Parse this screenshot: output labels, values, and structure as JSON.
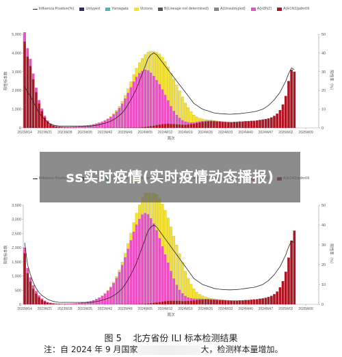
{
  "legend": [
    {
      "label": "Influenza Positive(%)",
      "color": "#222222",
      "kind": "line"
    },
    {
      "label": "Untyped",
      "color": "#2d2d5a",
      "kind": "box"
    },
    {
      "label": "Yamagata",
      "color": "#4fb3b0",
      "kind": "box"
    },
    {
      "label": "Victoria",
      "color": "#f4e233",
      "kind": "box"
    },
    {
      "label": "B(Lineage not determined)",
      "color": "#555555",
      "kind": "box"
    },
    {
      "label": "A(Unsubtyped)",
      "color": "#888888",
      "kind": "box"
    },
    {
      "label": "A(H3N2)",
      "color": "#ee4fc4",
      "kind": "box"
    },
    {
      "label": "A(H1N1)pdm09",
      "color": "#b01322",
      "kind": "box"
    }
  ],
  "overlay": {
    "title": "ss实时疫情(实时疫情动态播报)"
  },
  "caption": {
    "figure": "图 5",
    "title": "北方省份 ILI 标本检测结果"
  },
  "note": {
    "prefix": "注：自 2024 年 9 月国家",
    "suffix": "大，检测样本量增加。"
  },
  "chart_data": [
    {
      "type": "bar",
      "stacked": true,
      "x_tick_labels": [
        "2023W14",
        "2023W21",
        "2023W28",
        "2023W35",
        "2023W42",
        "2023W49",
        "2024W05",
        "2024W12",
        "2024W19",
        "2024W26",
        "2024W33",
        "2024W40",
        "2024W47",
        "2025W02",
        "2025W09"
      ],
      "x_tick_every": 7,
      "xlabel": "周次",
      "ylabel": "阳性标本数",
      "y2label": "阳性率（%）",
      "ylim": [
        0,
        5000
      ],
      "yticks": [
        0,
        1000,
        2000,
        3000,
        4000,
        5000
      ],
      "y2lim": [
        0,
        50
      ],
      "y2ticks": [
        0,
        10,
        20,
        30,
        40,
        50
      ],
      "n_weeks": 103,
      "h1n1": [
        4600,
        3800,
        3300,
        2600,
        1900,
        1300,
        900,
        550,
        330,
        190,
        110,
        70,
        45,
        30,
        22,
        18,
        15,
        12,
        10,
        10,
        10,
        10,
        10,
        10,
        10,
        10,
        10,
        10,
        10,
        10,
        10,
        10,
        10,
        12,
        12,
        14,
        15,
        16,
        18,
        20,
        25,
        35,
        50,
        70,
        95,
        120,
        150,
        180,
        200,
        210,
        220,
        210,
        200,
        190,
        180,
        170,
        160,
        180,
        200,
        220,
        260,
        290,
        320,
        340,
        350,
        360,
        350,
        340,
        330,
        320,
        310,
        300,
        300,
        310,
        320,
        330,
        340,
        350,
        360,
        370,
        380,
        400,
        420,
        440,
        470,
        500,
        560,
        640,
        760,
        950,
        1250,
        1700,
        2500,
        3100,
        3000,
        0,
        0,
        0,
        0,
        0,
        0,
        0,
        0
      ],
      "h3n2": [
        500,
        450,
        380,
        300,
        240,
        180,
        130,
        90,
        60,
        45,
        35,
        30,
        28,
        30,
        32,
        36,
        40,
        50,
        60,
        75,
        90,
        110,
        130,
        150,
        180,
        220,
        260,
        310,
        380,
        460,
        560,
        700,
        860,
        1050,
        1280,
        1550,
        1850,
        2150,
        2450,
        2700,
        2900,
        3000,
        3050,
        3000,
        2850,
        2650,
        2400,
        2150,
        1850,
        1550,
        1250,
        950,
        700,
        500,
        350,
        240,
        170,
        120,
        90,
        70,
        60,
        50,
        40,
        35,
        30,
        25,
        20,
        18,
        16,
        14,
        12,
        10,
        8,
        6,
        5,
        4,
        3,
        2,
        2,
        2,
        1,
        1,
        1,
        1,
        1,
        1,
        0,
        0,
        0,
        0,
        0,
        0,
        0,
        0,
        0,
        0,
        0,
        0,
        0,
        0,
        0,
        0,
        0
      ],
      "victoria": [
        0,
        0,
        0,
        0,
        0,
        0,
        0,
        0,
        0,
        0,
        0,
        0,
        0,
        0,
        0,
        0,
        0,
        0,
        0,
        0,
        0,
        0,
        0,
        0,
        0,
        5,
        8,
        12,
        18,
        25,
        35,
        50,
        70,
        95,
        130,
        170,
        230,
        300,
        380,
        470,
        560,
        680,
        820,
        980,
        1150,
        1320,
        1480,
        1620,
        1720,
        1780,
        1790,
        1760,
        1700,
        1600,
        1450,
        1250,
        1000,
        780,
        580,
        400,
        270,
        180,
        120,
        80,
        55,
        40,
        30,
        20,
        15,
        10,
        8,
        6,
        5,
        4,
        3,
        2,
        2,
        1,
        1,
        1,
        0,
        0,
        0,
        0,
        0,
        0,
        0,
        0,
        0,
        0,
        0,
        0,
        0,
        0,
        0,
        0,
        0,
        0,
        0,
        0,
        0,
        0,
        0
      ],
      "positive_rate": [
        22,
        19,
        17,
        14,
        11,
        8,
        6,
        4.5,
        3,
        2,
        1.5,
        1.2,
        1,
        1,
        1,
        1,
        1,
        1,
        1,
        1,
        1,
        1,
        1,
        1,
        1.2,
        1.4,
        1.7,
        2.1,
        2.5,
        3,
        3.6,
        4.4,
        5.4,
        6.6,
        8,
        10,
        12.5,
        15,
        18,
        21,
        25,
        29,
        33,
        37,
        39,
        40,
        39,
        37,
        35,
        33,
        31,
        29,
        27,
        25,
        23,
        21,
        19,
        17,
        15,
        13,
        12,
        11,
        10,
        9.5,
        9,
        8.5,
        8,
        7.8,
        7.6,
        7.5,
        7.4,
        7.3,
        7.3,
        7.4,
        7.5,
        7.6,
        7.8,
        8,
        8.2,
        8.4,
        8.6,
        9,
        9.5,
        10,
        11,
        12,
        13.5,
        15,
        17,
        19,
        22,
        25,
        29,
        32,
        31,
        0,
        0,
        0,
        0,
        0,
        0,
        0,
        0
      ]
    },
    {
      "type": "bar",
      "stacked": true,
      "x_tick_labels": [
        "2023W14",
        "2023W21",
        "2023W28",
        "2023W35",
        "2023W42",
        "2023W49",
        "2024W05",
        "2024W12",
        "2024W19",
        "2024W26",
        "2024W33",
        "2024W40",
        "2024W47",
        "2025W02",
        "2025W09"
      ],
      "x_tick_every": 7,
      "xlabel": "周次",
      "ylabel": "阳性标本数",
      "y2label": "阳性率（%）",
      "ylim": [
        0,
        3500
      ],
      "yticks": [
        0,
        500,
        1000,
        1500,
        2000,
        2500,
        3000,
        3500
      ],
      "y2lim": [
        0,
        50
      ],
      "y2ticks": [
        0,
        10,
        20,
        30,
        40,
        50
      ],
      "n_weeks": 103,
      "h1n1": [
        1800,
        1100,
        800,
        550,
        380,
        250,
        160,
        100,
        60,
        40,
        25,
        18,
        12,
        8,
        6,
        5,
        4,
        3,
        3,
        3,
        3,
        3,
        3,
        3,
        3,
        3,
        3,
        3,
        3,
        3,
        3,
        4,
        4,
        5,
        5,
        6,
        7,
        8,
        9,
        10,
        12,
        15,
        20,
        28,
        38,
        50,
        65,
        80,
        95,
        110,
        120,
        125,
        128,
        125,
        120,
        115,
        110,
        120,
        130,
        140,
        150,
        160,
        165,
        170,
        170,
        165,
        160,
        155,
        150,
        145,
        140,
        135,
        130,
        130,
        130,
        135,
        140,
        145,
        150,
        160,
        170,
        180,
        195,
        210,
        230,
        260,
        300,
        360,
        450,
        600,
        820,
        1150,
        1650,
        2250,
        2600,
        0,
        0,
        0,
        0,
        0,
        0,
        0,
        0
      ],
      "h3n2": [
        200,
        180,
        150,
        120,
        90,
        65,
        45,
        30,
        20,
        15,
        12,
        10,
        10,
        12,
        15,
        18,
        22,
        28,
        35,
        45,
        55,
        70,
        90,
        110,
        140,
        180,
        230,
        290,
        370,
        470,
        590,
        740,
        920,
        1130,
        1380,
        1650,
        1950,
        2250,
        2550,
        2800,
        3000,
        3150,
        3200,
        3150,
        3000,
        2800,
        2550,
        2250,
        1950,
        1650,
        1350,
        1050,
        780,
        560,
        390,
        270,
        180,
        120,
        85,
        60,
        45,
        35,
        28,
        22,
        18,
        15,
        12,
        10,
        8,
        6,
        5,
        4,
        3,
        2,
        2,
        2,
        1,
        1,
        1,
        1,
        1,
        1,
        1,
        0,
        0,
        0,
        0,
        0,
        0,
        0,
        0,
        0,
        0,
        0,
        0,
        0,
        0,
        0,
        0,
        0,
        0
      ],
      "victoria": [
        0,
        0,
        0,
        0,
        0,
        0,
        0,
        0,
        0,
        0,
        0,
        0,
        0,
        0,
        0,
        0,
        0,
        0,
        0,
        0,
        0,
        0,
        0,
        0,
        0,
        4,
        6,
        10,
        15,
        22,
        30,
        42,
        58,
        80,
        110,
        145,
        195,
        255,
        330,
        410,
        500,
        600,
        720,
        850,
        990,
        1130,
        1270,
        1400,
        1500,
        1560,
        1580,
        1560,
        1500,
        1410,
        1280,
        1100,
        880,
        680,
        500,
        350,
        240,
        160,
        110,
        75,
        50,
        36,
        26,
        19,
        14,
        10,
        8,
        6,
        5,
        4,
        3,
        2,
        2,
        1,
        1,
        1,
        0,
        0,
        0,
        0,
        0,
        0,
        0,
        0,
        0,
        0,
        0,
        0,
        0,
        0,
        0,
        0,
        0,
        0,
        0,
        0,
        0,
        0,
        0
      ],
      "positive_rate": [
        31,
        20,
        15,
        11,
        8,
        6,
        4.5,
        3.5,
        2.5,
        2,
        1.5,
        1.2,
        1,
        1,
        1,
        1,
        1,
        1,
        1,
        1,
        1,
        1,
        1,
        1,
        1.2,
        1.4,
        1.7,
        2.1,
        2.5,
        3,
        3.6,
        4.4,
        5.4,
        6.6,
        8,
        10,
        12.5,
        15,
        18,
        21,
        25,
        29,
        33,
        37,
        39,
        40,
        39,
        37,
        35,
        33,
        31,
        29,
        27,
        25,
        23,
        21,
        19,
        17,
        15,
        13,
        12,
        11,
        10,
        9.5,
        9,
        8.5,
        8,
        7.8,
        7.6,
        7.5,
        7.4,
        7.3,
        7.3,
        7.4,
        7.5,
        7.6,
        7.8,
        8,
        8.2,
        8.4,
        8.6,
        9,
        9.5,
        10,
        11,
        12,
        13.5,
        15,
        17,
        19,
        22,
        25,
        29,
        32,
        31,
        0,
        0,
        0,
        0,
        0,
        0,
        0,
        0
      ]
    }
  ]
}
